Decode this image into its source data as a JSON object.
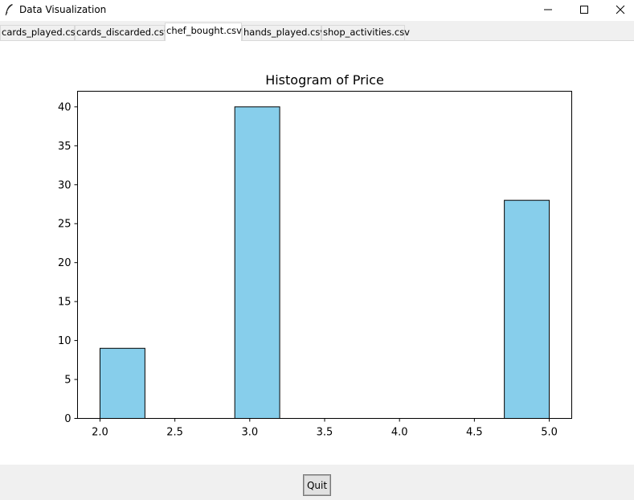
{
  "window": {
    "title": "Data Visualization",
    "icon": "feather-icon",
    "controls": [
      "minimize-icon",
      "maximize-icon",
      "close-icon"
    ]
  },
  "tabs": [
    {
      "label": "cards_played.csv",
      "active": false
    },
    {
      "label": "cards_discarded.csv",
      "active": false
    },
    {
      "label": "chef_bought.csv",
      "active": true
    },
    {
      "label": "hands_played.csv",
      "active": false
    },
    {
      "label": "shop_activities.csv",
      "active": false
    }
  ],
  "footer": {
    "quit_label": "Quit"
  },
  "chart_data": {
    "type": "bar",
    "title": "Histogram of Price",
    "xlabel": "",
    "ylabel": "",
    "xlim": [
      1.85,
      5.15
    ],
    "ylim": [
      0,
      42
    ],
    "x_ticks": [
      "2.0",
      "2.5",
      "3.0",
      "3.5",
      "4.0",
      "4.5",
      "5.0"
    ],
    "x_tick_values": [
      2.0,
      2.5,
      3.0,
      3.5,
      4.0,
      4.5,
      5.0
    ],
    "y_ticks": [
      "0",
      "5",
      "10",
      "15",
      "20",
      "25",
      "30",
      "35",
      "40"
    ],
    "y_tick_values": [
      0,
      5,
      10,
      15,
      20,
      25,
      30,
      35,
      40
    ],
    "bins": [
      {
        "x0": 2.0,
        "x1": 2.3,
        "count": 9
      },
      {
        "x0": 2.3,
        "x1": 2.6,
        "count": 0
      },
      {
        "x0": 2.6,
        "x1": 2.9,
        "count": 0
      },
      {
        "x0": 2.9,
        "x1": 3.2,
        "count": 40
      },
      {
        "x0": 3.2,
        "x1": 3.5,
        "count": 0
      },
      {
        "x0": 3.5,
        "x1": 3.8,
        "count": 0
      },
      {
        "x0": 3.8,
        "x1": 4.1,
        "count": 0
      },
      {
        "x0": 4.1,
        "x1": 4.4,
        "count": 0
      },
      {
        "x0": 4.4,
        "x1": 4.7,
        "count": 0
      },
      {
        "x0": 4.7,
        "x1": 5.0,
        "count": 28
      }
    ],
    "bar_color": "#87ceeb",
    "edge_color": "#000000",
    "grid": false,
    "legend": "none"
  }
}
